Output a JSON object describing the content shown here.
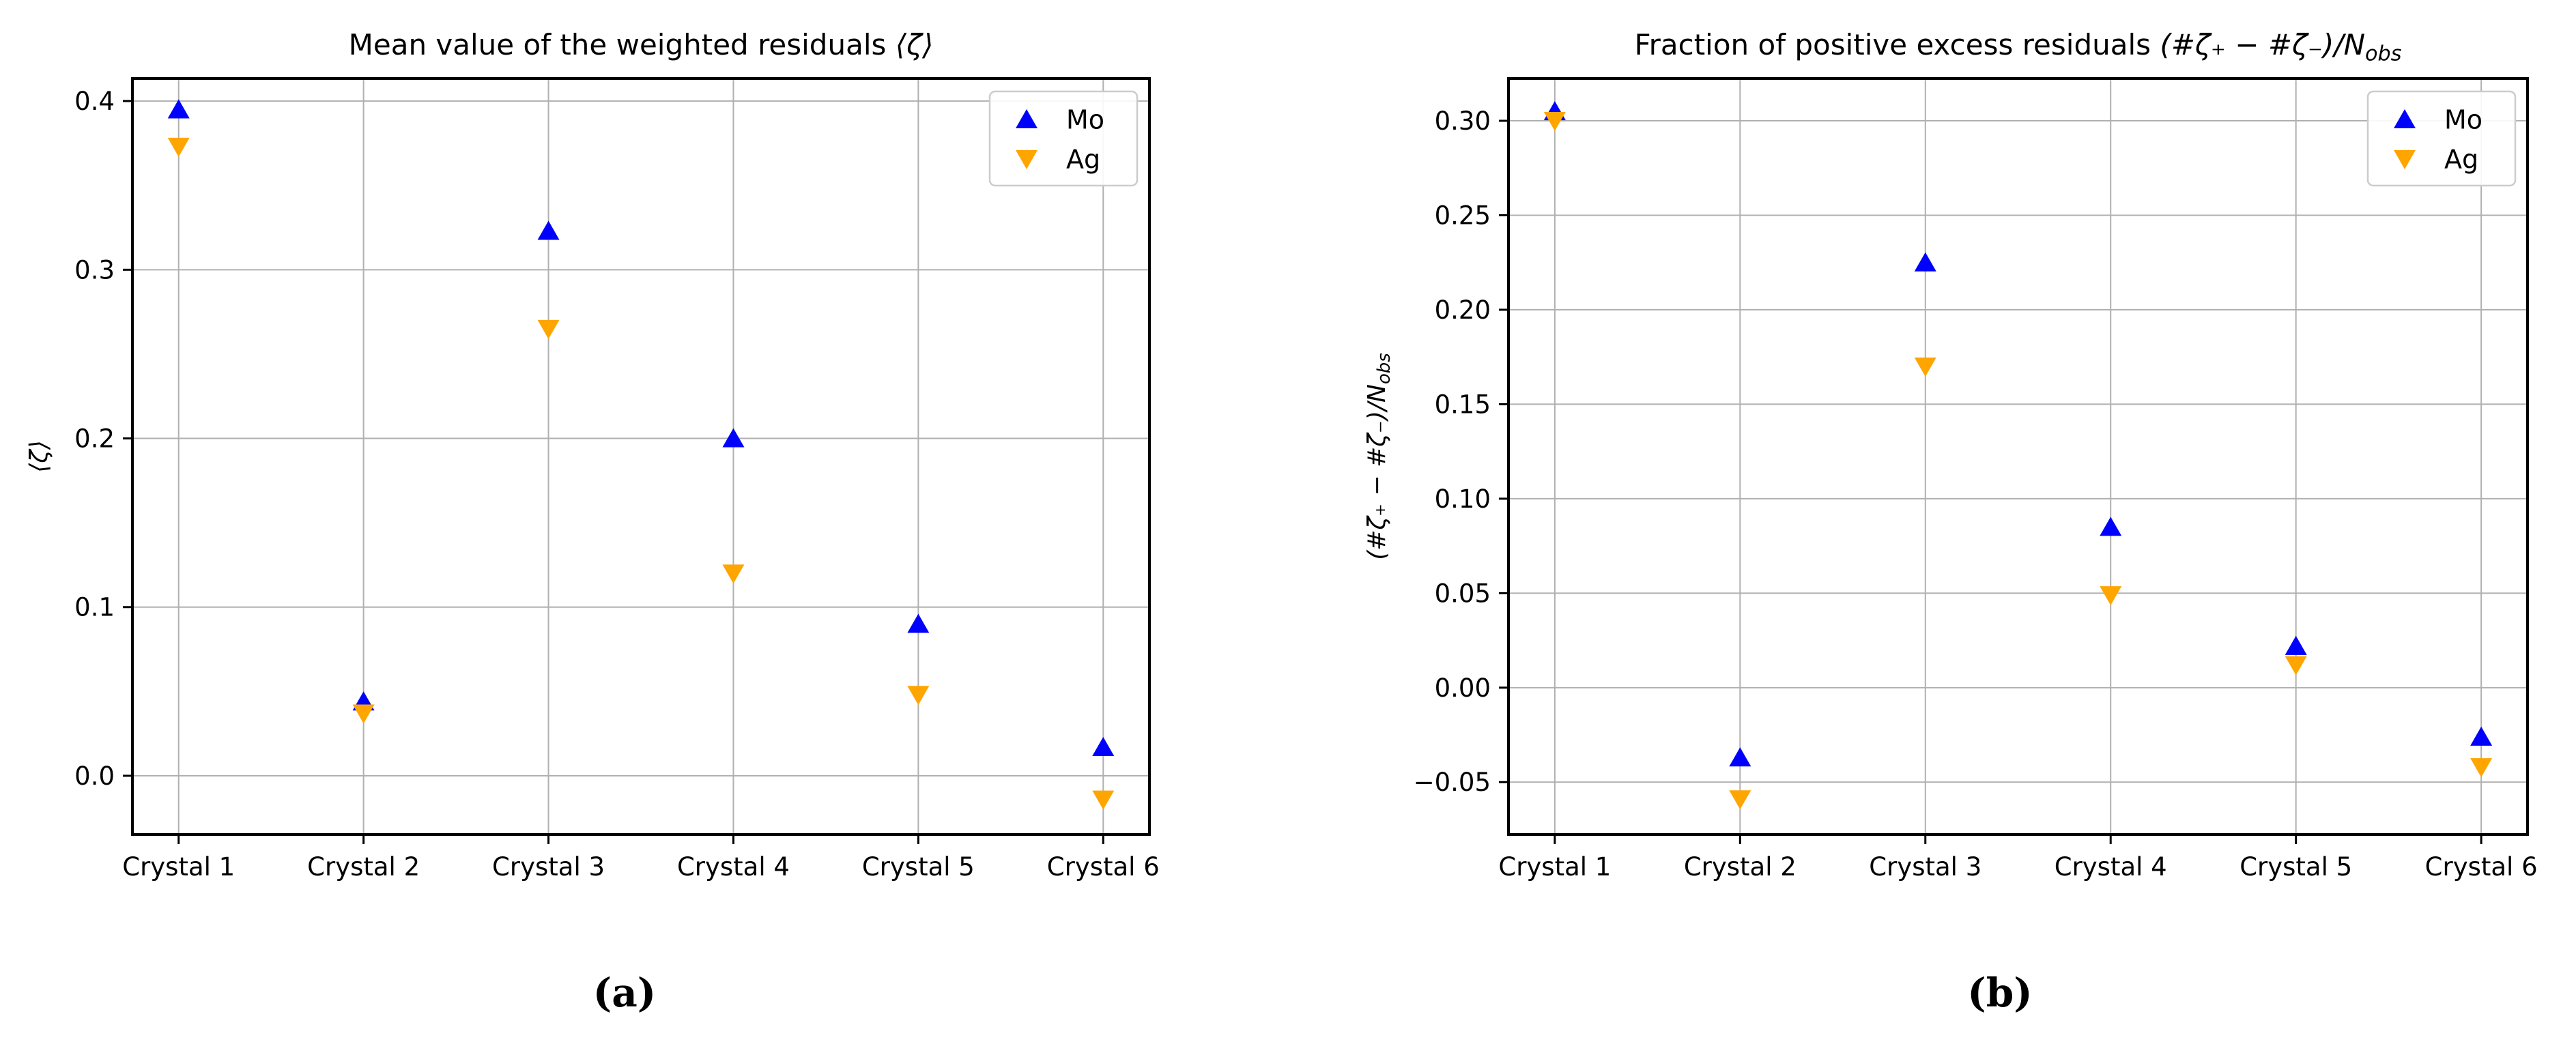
{
  "figure": {
    "background": "#ffffff",
    "captions": {
      "a": "(a)",
      "b": "(b)"
    }
  },
  "colors": {
    "mo": "#0000ff",
    "ag": "#ffa500",
    "grid": "#b0b0b0",
    "spine": "#000000",
    "legend_border": "#cccccc",
    "tick_label": "#000000"
  },
  "chart_data": [
    {
      "id": "a",
      "type": "scatter",
      "title": {
        "prefix": "Mean value of the weighted residuals ",
        "math": "⟨ζ⟩",
        "sub": ""
      },
      "ylabel": {
        "math": "⟨ζ⟩",
        "sub": ""
      },
      "xlabel": "",
      "categories": [
        "Crystal 1",
        "Crystal 2",
        "Crystal 3",
        "Crystal 4",
        "Crystal 5",
        "Crystal 6"
      ],
      "series": [
        {
          "name": "Mo",
          "marker": "triangle-up",
          "color": "#0000ff",
          "values": [
            0.395,
            0.044,
            0.323,
            0.2,
            0.09,
            0.017
          ]
        },
        {
          "name": "Ag",
          "marker": "triangle-down",
          "color": "#ffa500",
          "values": [
            0.373,
            0.037,
            0.265,
            0.12,
            0.048,
            -0.014
          ]
        }
      ],
      "ylim": [
        -0.0348,
        0.4134
      ],
      "yticks": [
        0.0,
        0.1,
        0.2,
        0.3,
        0.4
      ],
      "ytick_labels": [
        "0.0",
        "0.1",
        "0.2",
        "0.3",
        "0.4"
      ],
      "grid": true,
      "legend": {
        "position": "upper right",
        "labels": [
          "Mo",
          "Ag"
        ]
      }
    },
    {
      "id": "b",
      "type": "scatter",
      "title": {
        "prefix": "Fraction of positive excess residuals ",
        "math": "(#ζ₊ − #ζ₋)/N",
        "sub": "obs"
      },
      "ylabel": {
        "math": "(#ζ₊ − #ζ₋)/N",
        "sub": "obs"
      },
      "xlabel": "",
      "categories": [
        "Crystal 1",
        "Crystal 2",
        "Crystal 3",
        "Crystal 4",
        "Crystal 5",
        "Crystal 6"
      ],
      "series": [
        {
          "name": "Mo",
          "marker": "triangle-up",
          "color": "#0000ff",
          "values": [
            0.305,
            -0.037,
            0.225,
            0.085,
            0.022,
            -0.026
          ]
        },
        {
          "name": "Ag",
          "marker": "triangle-down",
          "color": "#ffa500",
          "values": [
            0.3,
            -0.059,
            0.17,
            0.049,
            0.012,
            -0.042
          ]
        }
      ],
      "ylim": [
        -0.0777,
        0.3224
      ],
      "yticks": [
        -0.05,
        0.0,
        0.05,
        0.1,
        0.15,
        0.2,
        0.25,
        0.3
      ],
      "ytick_labels": [
        "−0.05",
        "0.00",
        "0.05",
        "0.10",
        "0.15",
        "0.20",
        "0.25",
        "0.30"
      ],
      "grid": true,
      "legend": {
        "position": "upper right",
        "labels": [
          "Mo",
          "Ag"
        ]
      }
    }
  ]
}
